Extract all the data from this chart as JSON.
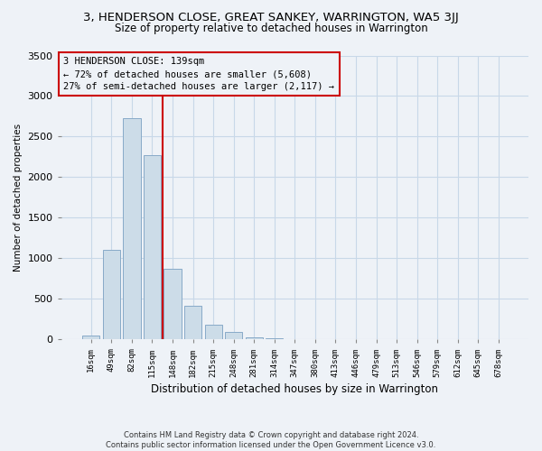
{
  "title": "3, HENDERSON CLOSE, GREAT SANKEY, WARRINGTON, WA5 3JJ",
  "subtitle": "Size of property relative to detached houses in Warrington",
  "xlabel": "Distribution of detached houses by size in Warrington",
  "ylabel": "Number of detached properties",
  "footnote1": "Contains HM Land Registry data © Crown copyright and database right 2024.",
  "footnote2": "Contains public sector information licensed under the Open Government Licence v3.0.",
  "bar_labels": [
    "16sqm",
    "49sqm",
    "82sqm",
    "115sqm",
    "148sqm",
    "182sqm",
    "215sqm",
    "248sqm",
    "281sqm",
    "314sqm",
    "347sqm",
    "380sqm",
    "413sqm",
    "446sqm",
    "479sqm",
    "513sqm",
    "546sqm",
    "579sqm",
    "612sqm",
    "645sqm",
    "678sqm"
  ],
  "bar_values": [
    50,
    1100,
    2730,
    2270,
    875,
    420,
    185,
    95,
    30,
    10,
    5,
    2,
    0,
    0,
    0,
    0,
    0,
    0,
    0,
    0,
    0
  ],
  "bar_color": "#ccdce8",
  "bar_edgecolor": "#88aac8",
  "annotation_text_line1": "3 HENDERSON CLOSE: 139sqm",
  "annotation_text_line2": "← 72% of detached houses are smaller (5,608)",
  "annotation_text_line3": "27% of semi-detached houses are larger (2,117) →",
  "vline_color": "#cc0000",
  "box_edgecolor": "#cc0000",
  "ylim": [
    0,
    3500
  ],
  "yticks": [
    0,
    500,
    1000,
    1500,
    2000,
    2500,
    3000,
    3500
  ],
  "grid_color": "#c8d8e8",
  "bg_color": "#eef2f7"
}
